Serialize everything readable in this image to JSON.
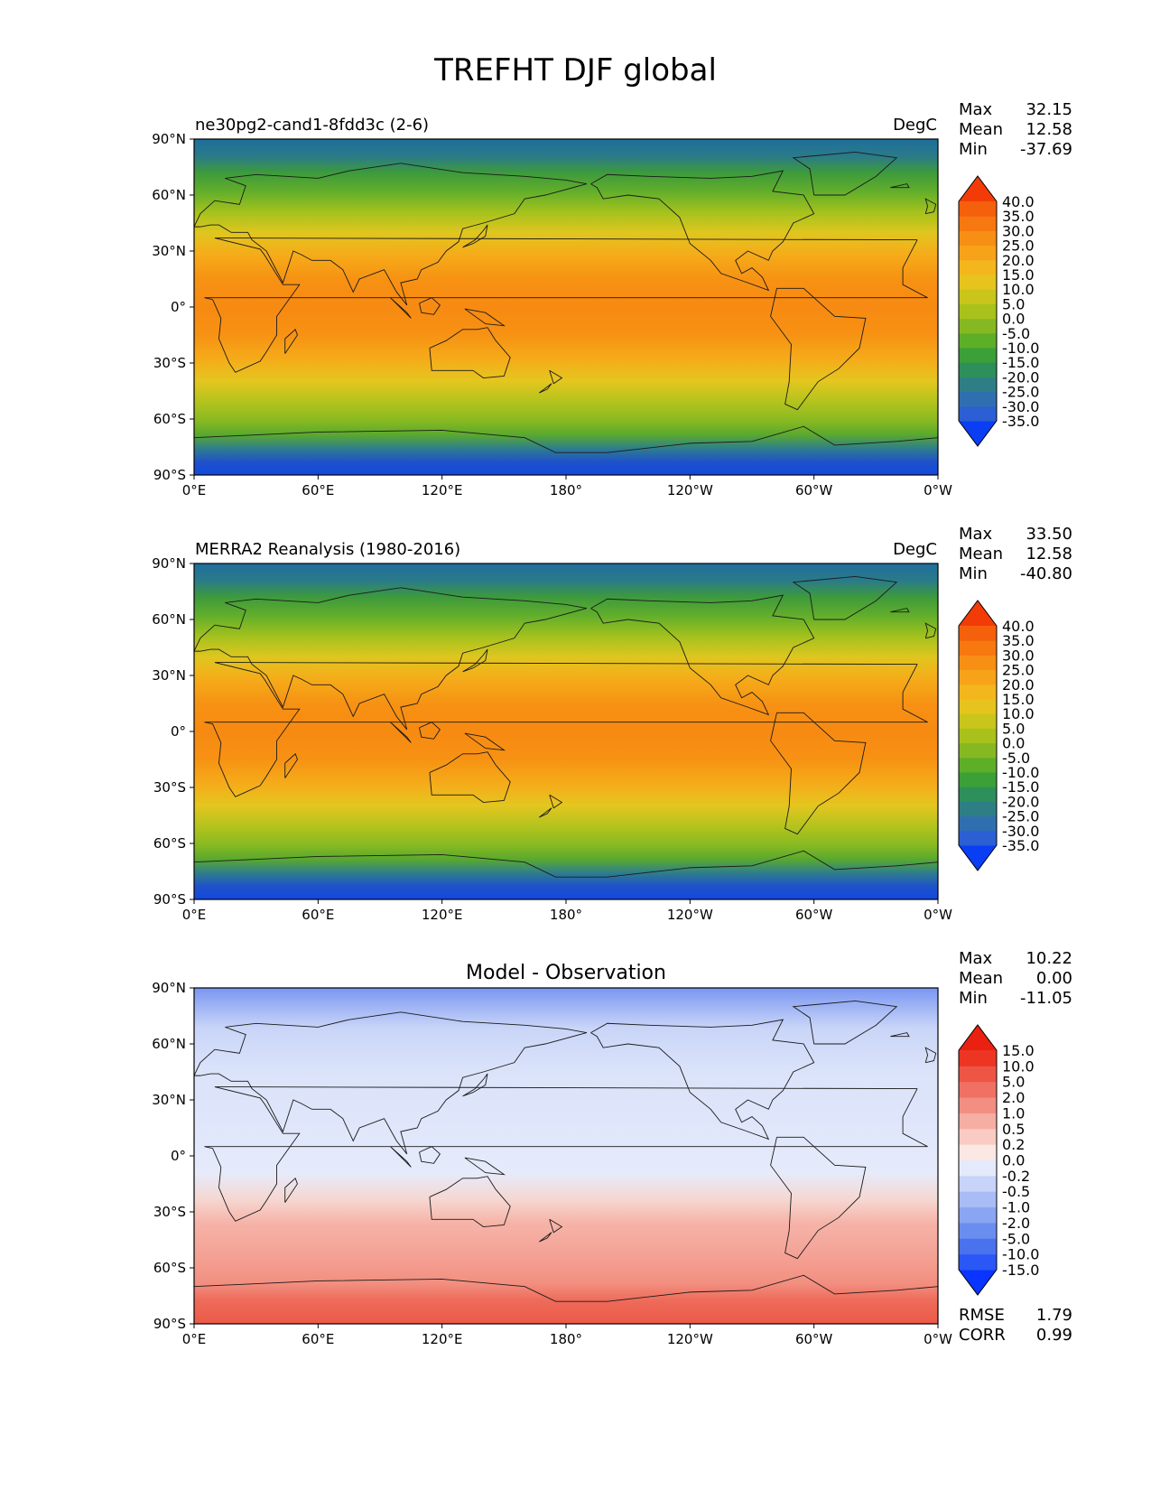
{
  "figure": {
    "title": "TREFHT DJF global"
  },
  "chart_data": [
    {
      "type": "heatmap",
      "title_left": "ne30pg2-cand1-8fdd3c (2-6)",
      "title_center": "",
      "units": "DegC",
      "stats": {
        "max_label": "Max",
        "max": "32.15",
        "mean_label": "Mean",
        "mean": "12.58",
        "min_label": "Min",
        "min": "-37.69"
      },
      "colormap": "temperature",
      "colorbar_levels": [
        "40.0",
        "35.0",
        "30.0",
        "25.0",
        "20.0",
        "15.0",
        "10.0",
        "5.0",
        "0.0",
        "-5.0",
        "-10.0",
        "-15.0",
        "-20.0",
        "-25.0",
        "-30.0",
        "-35.0"
      ],
      "x_ticks": [
        "0°E",
        "60°E",
        "120°E",
        "180°",
        "120°W",
        "60°W",
        "0°W"
      ],
      "y_ticks": [
        "90°N",
        "60°N",
        "30°N",
        "0°",
        "30°S",
        "60°S",
        "90°S"
      ],
      "xlim": [
        0,
        360
      ],
      "ylim": [
        -90,
        90
      ],
      "extra_stats": []
    },
    {
      "type": "heatmap",
      "title_left": "MERRA2 Reanalysis (1980-2016)",
      "title_center": "",
      "units": "DegC",
      "stats": {
        "max_label": "Max",
        "max": "33.50",
        "mean_label": "Mean",
        "mean": "12.58",
        "min_label": "Min",
        "min": "-40.80"
      },
      "colormap": "temperature",
      "colorbar_levels": [
        "40.0",
        "35.0",
        "30.0",
        "25.0",
        "20.0",
        "15.0",
        "10.0",
        "5.0",
        "0.0",
        "-5.0",
        "-10.0",
        "-15.0",
        "-20.0",
        "-25.0",
        "-30.0",
        "-35.0"
      ],
      "x_ticks": [
        "0°E",
        "60°E",
        "120°E",
        "180°",
        "120°W",
        "60°W",
        "0°W"
      ],
      "y_ticks": [
        "90°N",
        "60°N",
        "30°N",
        "0°",
        "30°S",
        "60°S",
        "90°S"
      ],
      "xlim": [
        0,
        360
      ],
      "ylim": [
        -90,
        90
      ],
      "extra_stats": []
    },
    {
      "type": "heatmap",
      "title_left": "",
      "title_center": "Model - Observation",
      "units": "",
      "stats": {
        "max_label": "Max",
        "max": "10.22",
        "mean_label": "Mean",
        "mean": "0.00",
        "min_label": "Min",
        "min": "-11.05"
      },
      "colormap": "difference",
      "colorbar_levels": [
        "15.0",
        "10.0",
        "5.0",
        "2.0",
        "1.0",
        "0.5",
        "0.2",
        "0.0",
        "-0.2",
        "-0.5",
        "-1.0",
        "-2.0",
        "-5.0",
        "-10.0",
        "-15.0"
      ],
      "x_ticks": [
        "0°E",
        "60°E",
        "120°E",
        "180°",
        "120°W",
        "60°W",
        "0°W"
      ],
      "y_ticks": [
        "90°N",
        "60°N",
        "30°N",
        "0°",
        "30°S",
        "60°S",
        "90°S"
      ],
      "xlim": [
        0,
        360
      ],
      "ylim": [
        -90,
        90
      ],
      "extra_stats": [
        {
          "label": "RMSE",
          "value": "1.79"
        },
        {
          "label": "CORR",
          "value": "0.99"
        }
      ]
    }
  ]
}
